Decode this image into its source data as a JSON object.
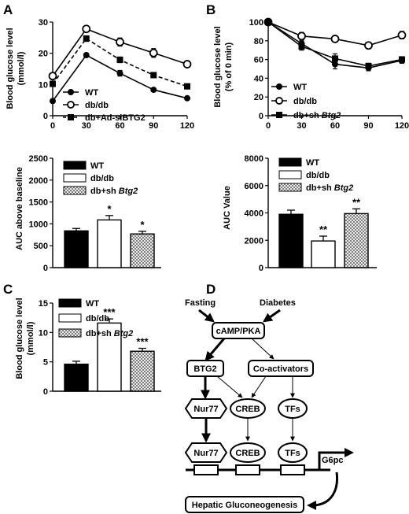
{
  "panel_labels": [
    "A",
    "B",
    "C",
    "D"
  ],
  "chart_data": [
    {
      "id": "A_top",
      "type": "line",
      "title": "",
      "ylabel_lines": [
        "Blood glucose level",
        "(mmol/l)"
      ],
      "xlabel": "",
      "x": [
        0,
        30,
        60,
        90,
        120
      ],
      "xlim": [
        0,
        120
      ],
      "ylim": [
        0,
        30
      ],
      "yticks": [
        0,
        10,
        20,
        30
      ],
      "xticks": [
        0,
        30,
        60,
        90,
        120
      ],
      "series": [
        {
          "name": "WT",
          "marker": "filled-circle",
          "line": "solid",
          "values": [
            4.7,
            19.4,
            13.6,
            8.3,
            5.6
          ],
          "errors": [
            0.3,
            0.6,
            0.9,
            0.5,
            0.3
          ]
        },
        {
          "name": "db/db",
          "marker": "open-circle",
          "line": "solid",
          "values": [
            12.7,
            27.8,
            23.6,
            20.1,
            16.5
          ],
          "errors": [
            0.6,
            0.8,
            1.3,
            1.4,
            0.9
          ]
        },
        {
          "name": "db+Ad-siBTG2",
          "marker": "filled-square",
          "line": "dashed",
          "values": [
            10.2,
            24.7,
            17.9,
            13.0,
            9.4
          ],
          "errors": [
            0.5,
            0.9,
            0.9,
            0.7,
            0.5
          ]
        }
      ],
      "legend": "bottom-left"
    },
    {
      "id": "A_bottom",
      "type": "bar",
      "ylabel": "AUC above baseline",
      "ylim": [
        0,
        2500
      ],
      "yticks": [
        0,
        500,
        1000,
        1500,
        2000,
        2500
      ],
      "categories": [
        "WT",
        "db/db",
        "db+sh Btg2"
      ],
      "values": [
        840,
        1090,
        770
      ],
      "errors": [
        55,
        100,
        60
      ],
      "annotations": [
        "",
        "*",
        "*"
      ],
      "legend": "top-left"
    },
    {
      "id": "B_top",
      "type": "line",
      "ylabel_lines": [
        "Blood glucose level",
        "(% of 0 min)"
      ],
      "x": [
        0,
        30,
        60,
        90,
        120
      ],
      "xlim": [
        0,
        120
      ],
      "ylim": [
        0,
        100
      ],
      "yticks": [
        0,
        20,
        40,
        60,
        80,
        100
      ],
      "xticks": [
        0,
        30,
        60,
        90,
        120
      ],
      "series": [
        {
          "name": "WT",
          "marker": "filled-circle",
          "line": "solid",
          "values": [
            100,
            77,
            55,
            51,
            59
          ],
          "errors": [
            0,
            3,
            5,
            3,
            3
          ]
        },
        {
          "name": "db/db",
          "marker": "open-circle",
          "line": "solid",
          "values": [
            100,
            85,
            82,
            75,
            86
          ],
          "errors": [
            0,
            4,
            3,
            3,
            4
          ]
        },
        {
          "name": "db+sh Btg2",
          "marker": "filled-square",
          "line": "solid",
          "values": [
            100,
            74,
            61,
            53,
            60
          ],
          "errors": [
            0,
            4,
            5,
            3,
            3
          ]
        }
      ],
      "legend": "bottom-left"
    },
    {
      "id": "B_bottom",
      "type": "bar",
      "ylabel": "AUC Value",
      "ylim": [
        0,
        8000
      ],
      "yticks": [
        0,
        2000,
        4000,
        6000,
        8000
      ],
      "categories": [
        "WT",
        "db/db",
        "db+sh Btg2"
      ],
      "values": [
        3900,
        1950,
        3950
      ],
      "errors": [
        300,
        350,
        350
      ],
      "annotations": [
        "",
        "**",
        "**"
      ],
      "legend": "top-left"
    },
    {
      "id": "C",
      "type": "bar",
      "ylabel_lines": [
        "Blood glucose level",
        "(mmol/l)"
      ],
      "ylim": [
        0,
        15
      ],
      "yticks": [
        0,
        5,
        10,
        15
      ],
      "categories": [
        "WT",
        "db/db",
        "db+sh Btg2"
      ],
      "values": [
        4.6,
        11.6,
        6.8
      ],
      "errors": [
        0.5,
        0.7,
        0.5
      ],
      "annotations": [
        "",
        "***",
        "***"
      ],
      "legend": "top-left"
    }
  ],
  "legend_labels": {
    "wt": "WT",
    "dbdb": "db/db",
    "ad_si": "db+Ad-siBTG2",
    "sh_prefix": "db+sh ",
    "sh_gene": "Btg2"
  },
  "diagram": {
    "fasting": "Fasting",
    "diabetes": "Diabetes",
    "camp_pka": "cAMP/PKA",
    "btg2": "BTG2",
    "coactivators": "Co-activators",
    "nur77_top": "Nur77",
    "creb_top": "CREB",
    "tfs_top": "TFs",
    "nur77_bottom": "Nur77",
    "creb_bottom": "CREB",
    "tfs_bottom": "TFs",
    "g6pc": "G6pc",
    "hepatic": "Hepatic Gluconeogenesis"
  }
}
